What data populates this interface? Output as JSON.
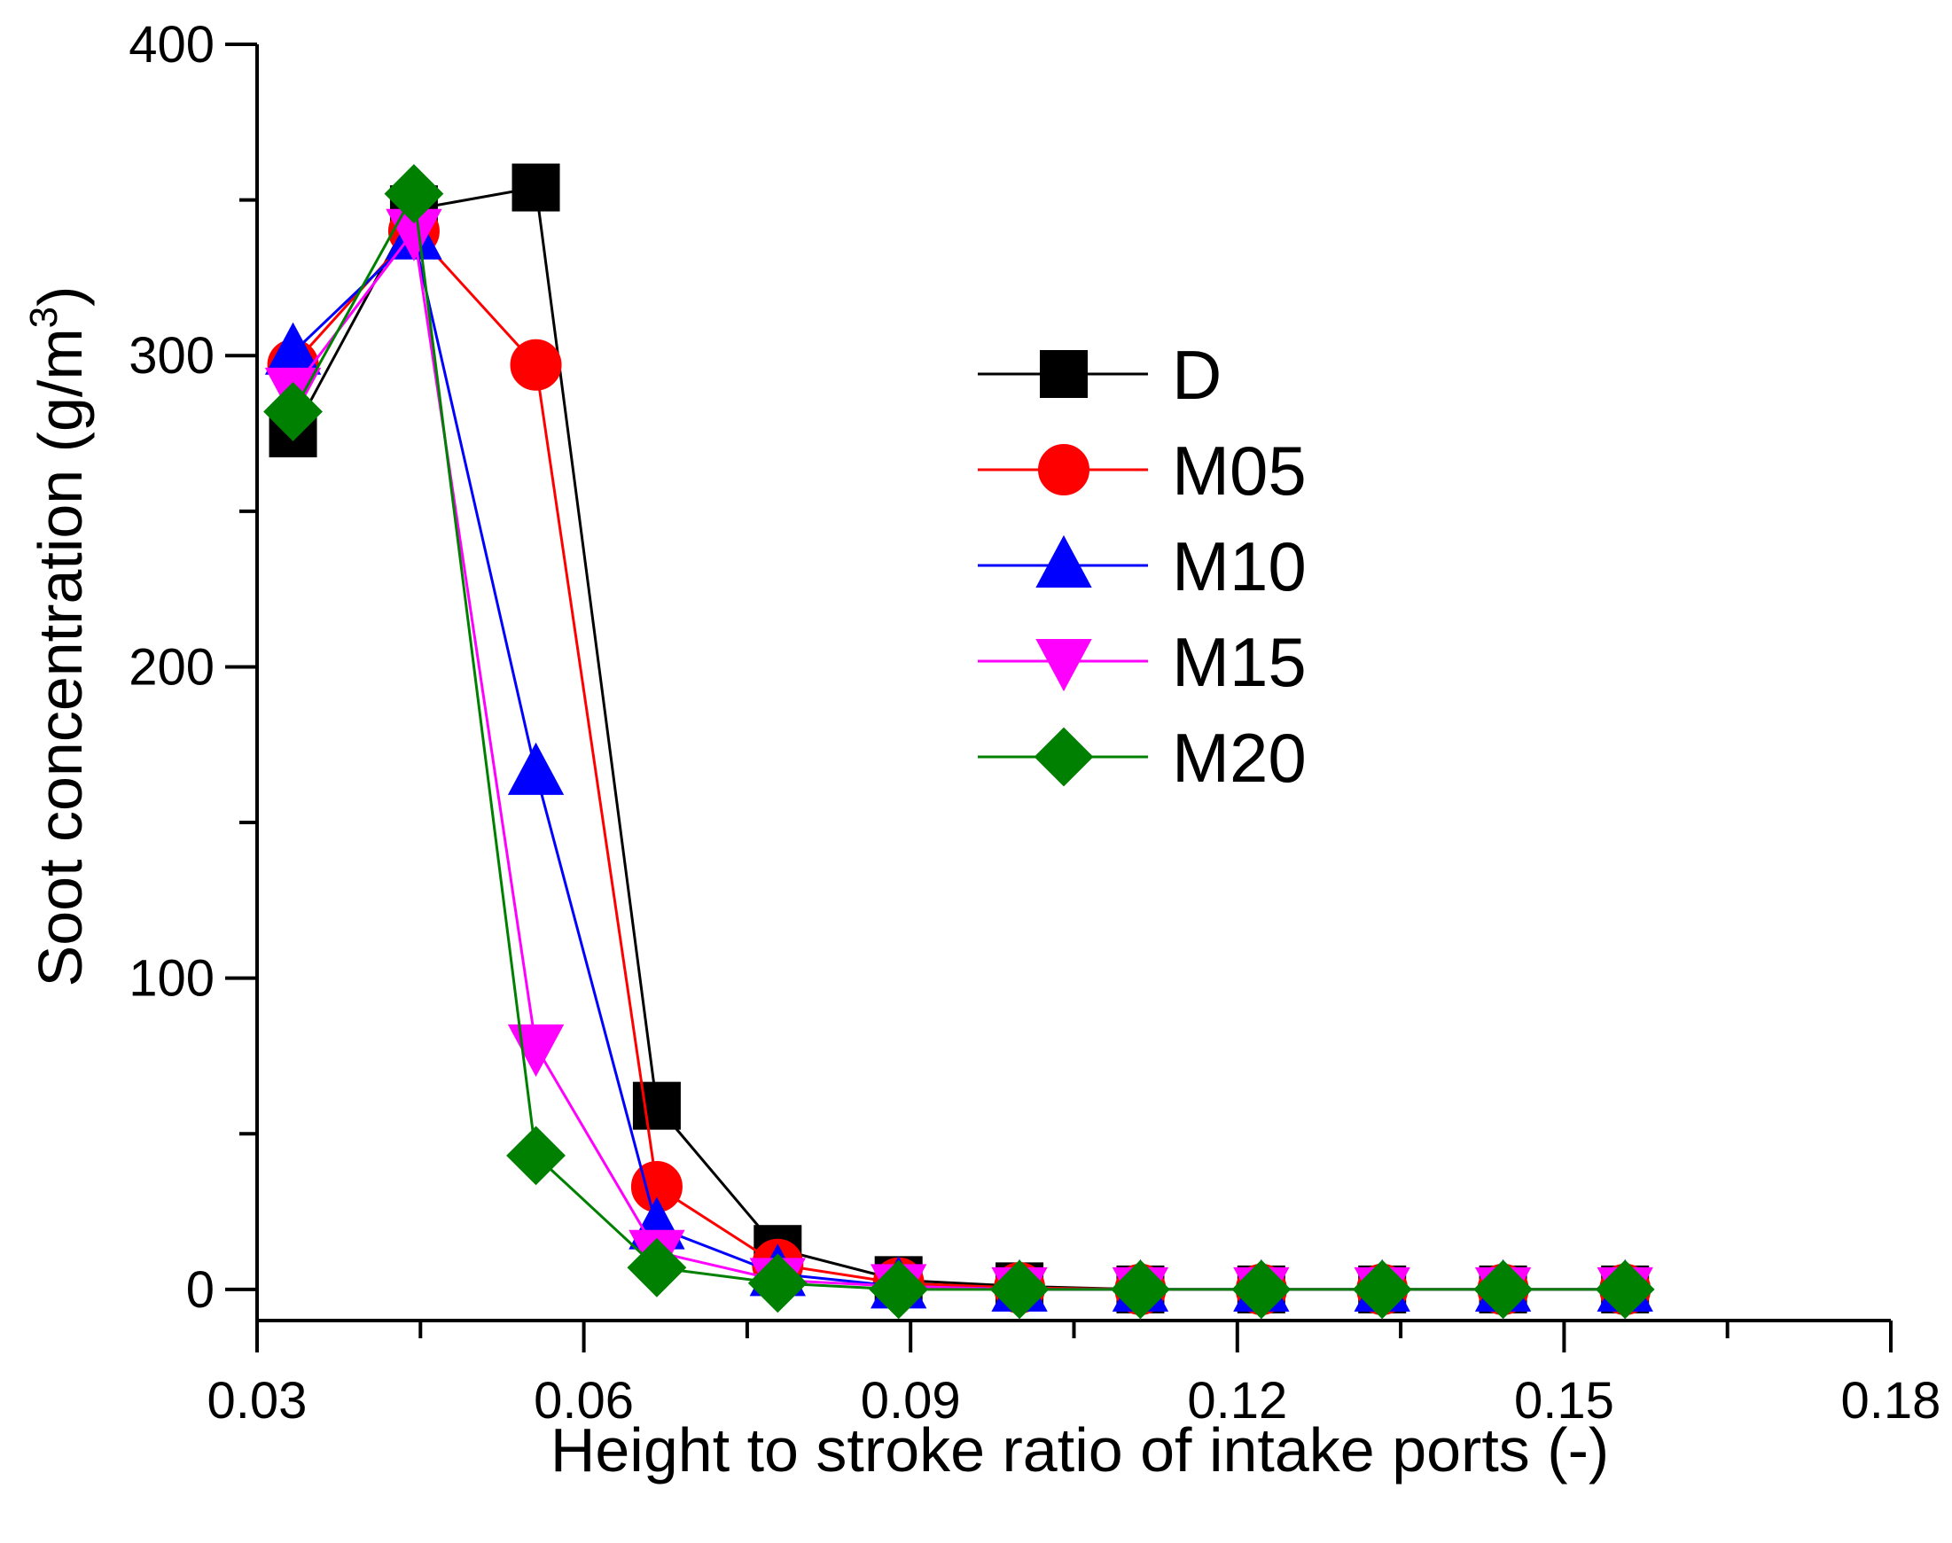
{
  "chart_data": {
    "type": "line",
    "title": "",
    "xlabel": "Height to stroke ratio of intake ports (-)",
    "ylabel": "Soot concentration (g/m",
    "ylabel_sup": "3",
    "ylabel_close": ")",
    "xlim": [
      0.03,
      0.18
    ],
    "ylim": [
      -10,
      400
    ],
    "xticks": [
      0.03,
      0.06,
      0.09,
      0.12,
      0.15,
      0.18
    ],
    "xtick_labels": [
      "0.03",
      "0.06",
      "0.09",
      "0.12",
      "0.15",
      "0.18"
    ],
    "yticks": [
      0,
      100,
      200,
      300,
      400
    ],
    "ytick_labels": [
      "0",
      "100",
      "200",
      "300",
      "400"
    ],
    "grid": false,
    "legend_position": "center-right",
    "x": [
      0.0333,
      0.0444,
      0.0556,
      0.0667,
      0.0778,
      0.0889,
      0.1,
      0.1111,
      0.1222,
      0.1333,
      0.1444,
      0.1556
    ],
    "series": [
      {
        "name": "D",
        "color": "#000000",
        "marker": "square",
        "values": [
          275,
          347,
          354,
          59,
          13,
          3,
          1,
          0,
          0,
          0,
          0,
          0
        ]
      },
      {
        "name": "M05",
        "color": "#ff0000",
        "marker": "circle",
        "values": [
          297,
          340,
          297,
          33,
          8,
          2,
          0.5,
          0,
          0,
          0,
          0,
          0
        ]
      },
      {
        "name": "M10",
        "color": "#0000ff",
        "marker": "triangle-up",
        "values": [
          301,
          338,
          166,
          20,
          5,
          1,
          0,
          0,
          0,
          0,
          0,
          0
        ]
      },
      {
        "name": "M15",
        "color": "#ff00ff",
        "marker": "triangle-down",
        "values": [
          289,
          340,
          78,
          12,
          3,
          1,
          0,
          0,
          0,
          0,
          0,
          0
        ]
      },
      {
        "name": "M20",
        "color": "#008000",
        "marker": "diamond",
        "values": [
          282,
          352,
          43,
          7,
          2,
          0,
          0,
          0,
          0,
          0,
          0,
          0
        ]
      }
    ]
  }
}
